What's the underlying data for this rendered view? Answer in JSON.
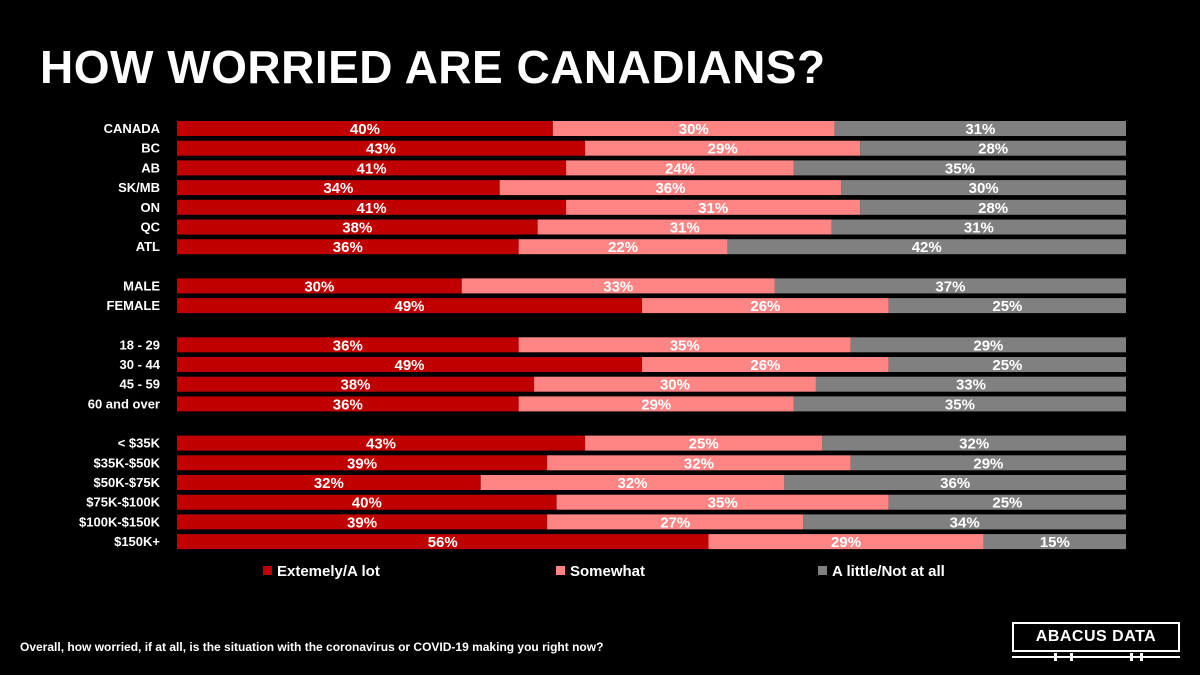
{
  "title": "HOW WORRIED ARE CANADIANS?",
  "footnote": "Overall, how worried, if at all, is the situation with the coronavirus or COVID-19 making you right now?",
  "logo_text": "ABACUS DATA",
  "colors": {
    "background": "#000000",
    "extremely": "#c00000",
    "somewhat": "#ff8585",
    "little": "#808080",
    "text": "#ffffff"
  },
  "chart_data": {
    "type": "bar",
    "orientation": "horizontal",
    "stacked": true,
    "percent_scale": true,
    "legend_position": "bottom",
    "grid": false,
    "categories": [
      "CANADA",
      "BC",
      "AB",
      "SK/MB",
      "ON",
      "QC",
      "ATL",
      "MALE",
      "FEMALE",
      "18 - 29",
      "30 - 44",
      "45 - 59",
      "60 and over",
      "< $35K",
      "$35K-$50K",
      "$50K-$75K",
      "$75K-$100K",
      "$100K-$150K",
      "$150K+"
    ],
    "groups": [
      [
        "CANADA",
        "BC",
        "AB",
        "SK/MB",
        "ON",
        "QC",
        "ATL"
      ],
      [
        "MALE",
        "FEMALE"
      ],
      [
        "18 - 29",
        "30 - 44",
        "45 - 59",
        "60 and over"
      ],
      [
        "< $35K",
        "$35K-$50K",
        "$50K-$75K",
        "$75K-$100K",
        "$100K-$150K",
        "$150K+"
      ]
    ],
    "series": [
      {
        "name": "Extemely/A lot",
        "color": "#c00000",
        "values": [
          40,
          43,
          41,
          34,
          41,
          38,
          36,
          30,
          49,
          36,
          49,
          38,
          36,
          43,
          39,
          32,
          40,
          39,
          56
        ],
        "labels": [
          "40%",
          "43%",
          "41%",
          "34%",
          "41%",
          "38%",
          "36%",
          "30%",
          "49%",
          "36%",
          "49%",
          "38%",
          "36%",
          "43%",
          "39%",
          "32%",
          "40%",
          "39%",
          "56%"
        ]
      },
      {
        "name": "Somewhat",
        "color": "#ff8585",
        "values": [
          30,
          29,
          24,
          36,
          31,
          31,
          22,
          33,
          26,
          35,
          26,
          30,
          29,
          25,
          32,
          32,
          35,
          27,
          29
        ],
        "labels": [
          "30%",
          "29%",
          "24%",
          "36%",
          "31%",
          "31%",
          "22%",
          "33%",
          "26%",
          "35%",
          "26%",
          "30%",
          "29%",
          "25%",
          "32%",
          "32%",
          "35%",
          "27%",
          "29%"
        ]
      },
      {
        "name": "A little/Not at all",
        "color": "#808080",
        "values": [
          31,
          28,
          35,
          30,
          28,
          31,
          42,
          37,
          25,
          29,
          25,
          33,
          35,
          32,
          29,
          36,
          25,
          34,
          15
        ],
        "labels": [
          "31%",
          "28%",
          "35%",
          "30%",
          "28%",
          "31%",
          "42%",
          "37%",
          "25%",
          "29%",
          "25%",
          "33%",
          "35%",
          "32%",
          "29%",
          "36%",
          "25%",
          "34%",
          "15%"
        ]
      }
    ]
  }
}
